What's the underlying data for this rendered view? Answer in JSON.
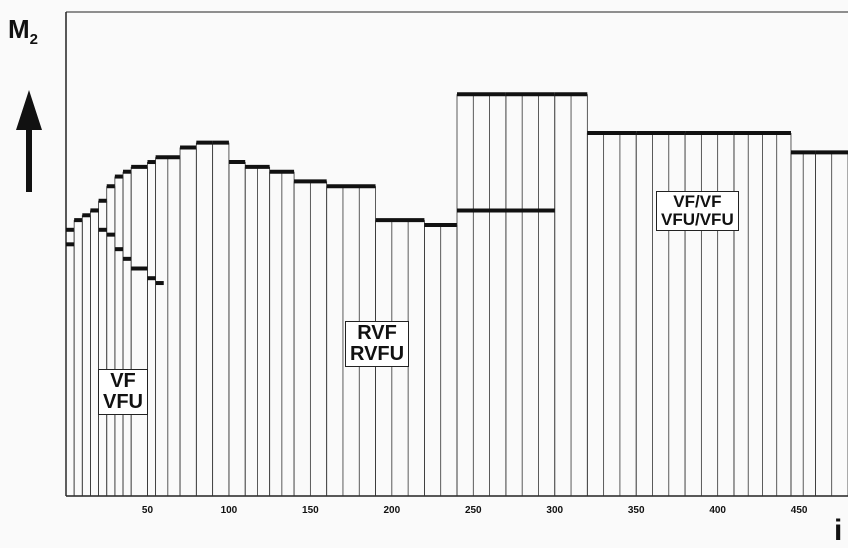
{
  "y_axis_label": "M",
  "y_axis_sub": "2",
  "x_axis_label": "i",
  "chart_data": {
    "type": "bar",
    "xlabel": "i",
    "ylabel": "M2",
    "xlim": [
      0,
      480
    ],
    "xticks": [
      "50",
      "100",
      "150",
      "200",
      "250",
      "300",
      "350",
      "400",
      "450"
    ],
    "annotations": [
      {
        "lines": [
          "VF",
          "VFU"
        ]
      },
      {
        "lines": [
          "RVF",
          "RVFU"
        ]
      },
      {
        "lines": [
          "VF/VF",
          "VFU/VFU"
        ]
      }
    ],
    "steps": [
      {
        "x0": 0,
        "x1": 5,
        "y": 55
      },
      {
        "x0": 5,
        "x1": 10,
        "y": 57
      },
      {
        "x0": 10,
        "x1": 15,
        "y": 58
      },
      {
        "x0": 15,
        "x1": 20,
        "y": 59
      },
      {
        "x0": 20,
        "x1": 25,
        "y": 61
      },
      {
        "x0": 25,
        "x1": 30,
        "y": 64
      },
      {
        "x0": 30,
        "x1": 35,
        "y": 66
      },
      {
        "x0": 35,
        "x1": 40,
        "y": 67
      },
      {
        "x0": 40,
        "x1": 50,
        "y": 68
      },
      {
        "x0": 50,
        "x1": 55,
        "y": 69
      },
      {
        "x0": 55,
        "x1": 70,
        "y": 70
      },
      {
        "x0": 70,
        "x1": 80,
        "y": 72
      },
      {
        "x0": 80,
        "x1": 90,
        "y": 73
      },
      {
        "x0": 90,
        "x1": 100,
        "y": 73
      },
      {
        "x0": 100,
        "x1": 110,
        "y": 69
      },
      {
        "x0": 110,
        "x1": 125,
        "y": 68
      },
      {
        "x0": 125,
        "x1": 140,
        "y": 67
      },
      {
        "x0": 140,
        "x1": 160,
        "y": 65
      },
      {
        "x0": 160,
        "x1": 190,
        "y": 64
      },
      {
        "x0": 190,
        "x1": 220,
        "y": 57
      },
      {
        "x0": 220,
        "x1": 240,
        "y": 56
      },
      {
        "x0": 240,
        "x1": 270,
        "y": 83
      },
      {
        "x0": 270,
        "x1": 300,
        "y": 83
      },
      {
        "x0": 300,
        "x1": 320,
        "y": 83
      },
      {
        "x0": 320,
        "x1": 350,
        "y": 75
      },
      {
        "x0": 350,
        "x1": 380,
        "y": 75
      },
      {
        "x0": 380,
        "x1": 410,
        "y": 75
      },
      {
        "x0": 410,
        "x1": 445,
        "y": 75
      },
      {
        "x0": 445,
        "x1": 460,
        "y": 71
      },
      {
        "x0": 460,
        "x1": 480,
        "y": 71
      }
    ],
    "secondary": [
      {
        "x0": 0,
        "x1": 5,
        "y": 52
      },
      {
        "x0": 15,
        "x1": 20,
        "y": 59
      },
      {
        "x0": 20,
        "x1": 25,
        "y": 55
      },
      {
        "x0": 25,
        "x1": 30,
        "y": 54
      },
      {
        "x0": 30,
        "x1": 35,
        "y": 51
      },
      {
        "x0": 35,
        "x1": 40,
        "y": 49
      },
      {
        "x0": 40,
        "x1": 50,
        "y": 47
      },
      {
        "x0": 50,
        "x1": 55,
        "y": 45
      },
      {
        "x0": 55,
        "x1": 60,
        "y": 44
      }
    ],
    "step_lines_extra": [
      {
        "x0": 240,
        "x1": 300,
        "y": 59
      }
    ]
  }
}
